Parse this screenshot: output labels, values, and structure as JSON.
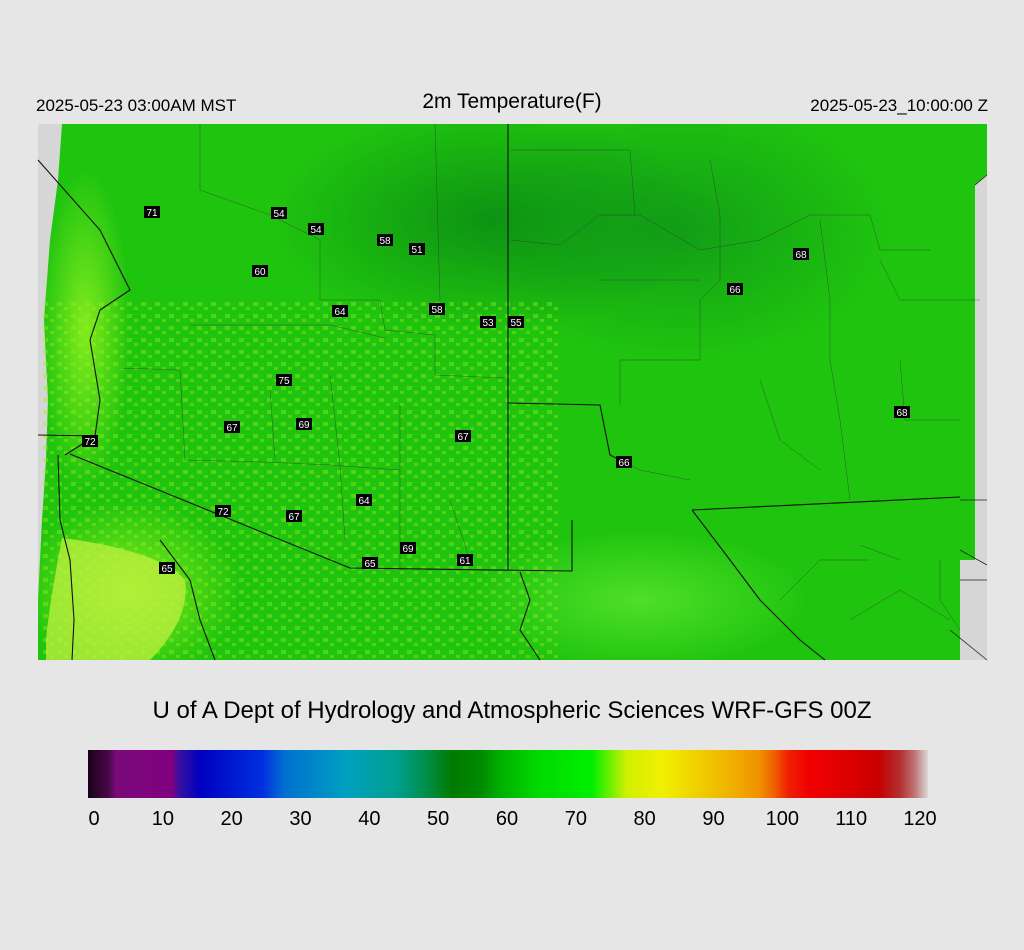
{
  "header": {
    "valid_local": "2025-05-23 03:00AM MST",
    "title": "2m Temperature(F)",
    "valid_utc": "2025-05-23_10:00:00 Z"
  },
  "credit": "U of A Dept of Hydrology and Atmospheric Sciences WRF-GFS 00Z",
  "colors": {
    "background": "#e6e6e6",
    "map_base": "#1fc40f",
    "station_label_bg": "#000000",
    "station_label_text": "#ffffff"
  },
  "colorbar": {
    "min": 0,
    "max": 120,
    "ticks": [
      "0",
      "10",
      "20",
      "30",
      "40",
      "50",
      "60",
      "70",
      "80",
      "90",
      "100",
      "110",
      "120"
    ],
    "stops": [
      {
        "v": 0,
        "c": "#1a0018"
      },
      {
        "v": 3,
        "c": "#4a0a4a"
      },
      {
        "v": 4,
        "c": "#7a0a7a"
      },
      {
        "v": 12,
        "c": "#800080"
      },
      {
        "v": 13,
        "c": "#3a10a0"
      },
      {
        "v": 16,
        "c": "#0000c0"
      },
      {
        "v": 25,
        "c": "#0030e0"
      },
      {
        "v": 28,
        "c": "#0070d0"
      },
      {
        "v": 37,
        "c": "#00a0c0"
      },
      {
        "v": 44,
        "c": "#00a090"
      },
      {
        "v": 48,
        "c": "#009050"
      },
      {
        "v": 52,
        "c": "#007a00"
      },
      {
        "v": 56,
        "c": "#008800"
      },
      {
        "v": 59,
        "c": "#00b000"
      },
      {
        "v": 64,
        "c": "#00d800"
      },
      {
        "v": 72,
        "c": "#00f000"
      },
      {
        "v": 75,
        "c": "#80f000"
      },
      {
        "v": 77,
        "c": "#d0f000"
      },
      {
        "v": 82,
        "c": "#f0f000"
      },
      {
        "v": 87,
        "c": "#f0d000"
      },
      {
        "v": 92,
        "c": "#f0b000"
      },
      {
        "v": 96,
        "c": "#f09000"
      },
      {
        "v": 98,
        "c": "#f06000"
      },
      {
        "v": 100,
        "c": "#f02000"
      },
      {
        "v": 103,
        "c": "#f00000"
      },
      {
        "v": 108,
        "c": "#e00000"
      },
      {
        "v": 113,
        "c": "#c80000"
      },
      {
        "v": 116,
        "c": "#b03030"
      },
      {
        "v": 118,
        "c": "#c07070"
      },
      {
        "v": 120,
        "c": "#d8d8d8"
      }
    ]
  },
  "stations": [
    {
      "v": "71"
    },
    {
      "v": "54"
    },
    {
      "v": "54"
    },
    {
      "v": "58"
    },
    {
      "v": "51"
    },
    {
      "v": "60"
    },
    {
      "v": "64"
    },
    {
      "v": "58"
    },
    {
      "v": "53"
    },
    {
      "v": "55"
    },
    {
      "v": "75"
    },
    {
      "v": "67"
    },
    {
      "v": "69"
    },
    {
      "v": "67"
    },
    {
      "v": "72"
    },
    {
      "v": "72"
    },
    {
      "v": "67"
    },
    {
      "v": "64"
    },
    {
      "v": "65"
    },
    {
      "v": "69"
    },
    {
      "v": "61"
    },
    {
      "v": "65"
    },
    {
      "v": "66"
    },
    {
      "v": "68"
    },
    {
      "v": "66"
    },
    {
      "v": "68"
    }
  ]
}
